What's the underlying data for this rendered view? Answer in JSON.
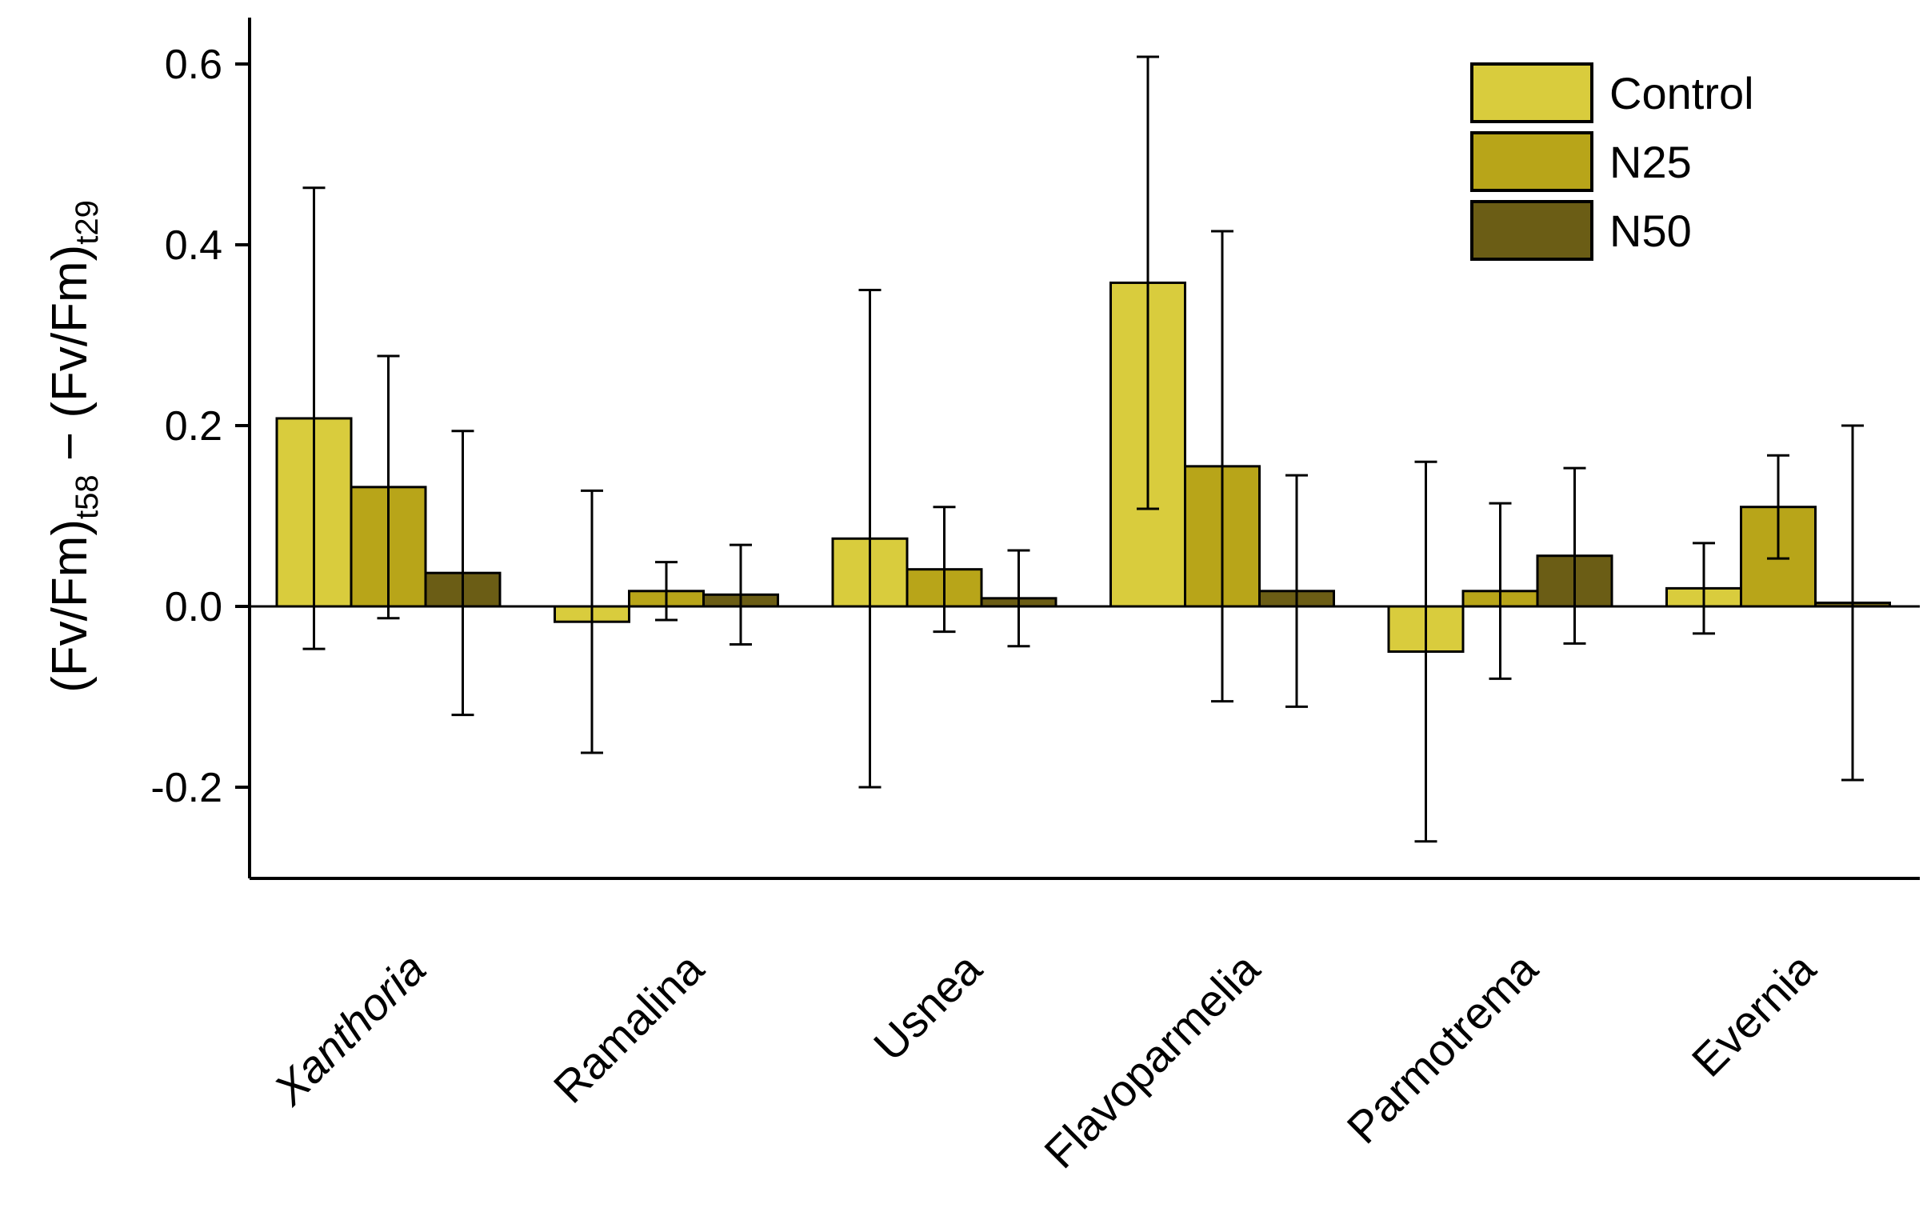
{
  "chart_data": {
    "type": "bar",
    "title": "",
    "xlabel": "",
    "ylabel": {
      "part1": "(Fv/Fm)",
      "sub1": "t58",
      "dash": " − ",
      "part2": "(Fv/Fm)",
      "sub2": "t29"
    },
    "ylim": [
      -0.3,
      0.65
    ],
    "yticks": [
      -0.2,
      0.0,
      0.2,
      0.4,
      0.6
    ],
    "ytick_labels": [
      "-0.2",
      "0.0",
      "0.2",
      "0.4",
      "0.6"
    ],
    "categories": [
      "Xanthoria",
      "Ramalina",
      "Usnea",
      "Flavoparmelia",
      "Parmotrema",
      "Evernia"
    ],
    "legend_position": "top-right",
    "series": [
      {
        "name": "Control",
        "color": "#d9cc3d",
        "values": [
          0.208,
          -0.017,
          0.075,
          0.358,
          -0.05,
          0.02
        ],
        "error": [
          0.255,
          0.145,
          0.275,
          0.25,
          0.21,
          0.05
        ]
      },
      {
        "name": "N25",
        "color": "#b8a519",
        "values": [
          0.132,
          0.017,
          0.041,
          0.155,
          0.017,
          0.11
        ],
        "error": [
          0.145,
          0.032,
          0.069,
          0.26,
          0.097,
          0.057
        ]
      },
      {
        "name": "N50",
        "color": "#6b5d15",
        "values": [
          0.037,
          0.013,
          0.009,
          0.017,
          0.056,
          0.004
        ],
        "error": [
          0.157,
          0.055,
          0.053,
          0.128,
          0.097,
          0.196
        ]
      }
    ]
  }
}
